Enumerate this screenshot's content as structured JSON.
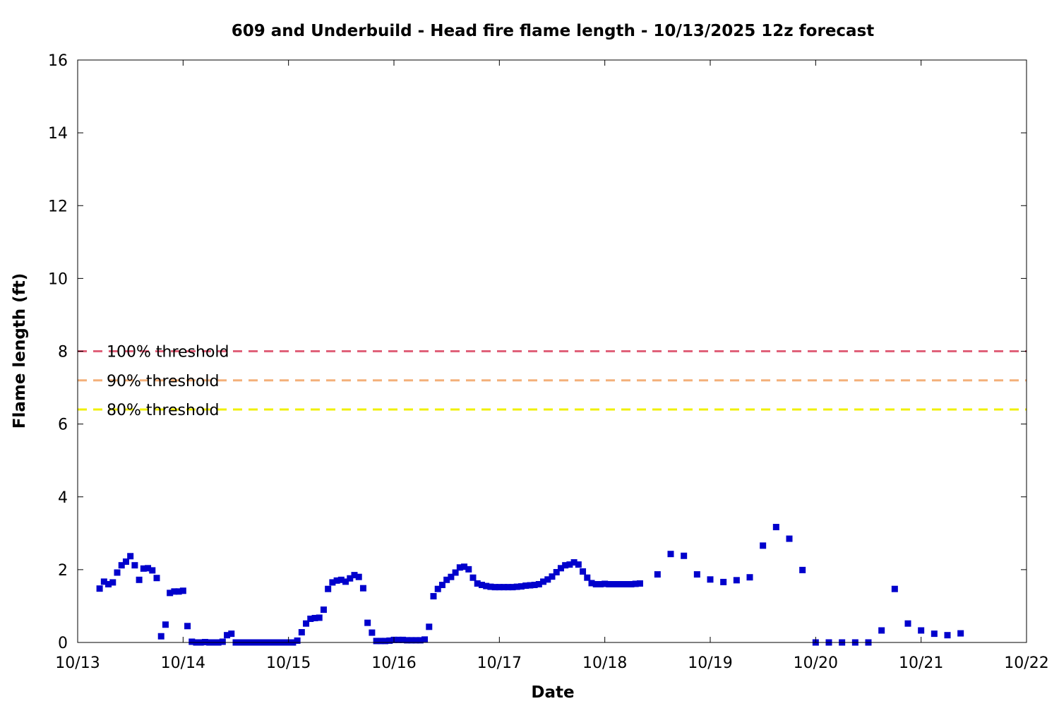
{
  "chart_data": {
    "type": "scatter",
    "title": "609 and Underbuild - Head fire flame length - 10/13/2025 12z forecast",
    "xlabel": "Date",
    "ylabel": "Flame length (ft)",
    "xlim": [
      "10/13 00:00",
      "10/22 00:00"
    ],
    "ylim": [
      0,
      16
    ],
    "x_ticks": [
      "10/13",
      "10/14",
      "10/15",
      "10/16",
      "10/17",
      "10/18",
      "10/19",
      "10/20",
      "10/21",
      "10/22"
    ],
    "y_ticks": [
      "0",
      "2",
      "4",
      "6",
      "8",
      "10",
      "12",
      "14",
      "16"
    ],
    "grid": false,
    "colors": {
      "points": "#0000cc",
      "threshold_100": "#e0627a",
      "threshold_90": "#f4b07a",
      "threshold_80": "#f0f000"
    },
    "thresholds": [
      {
        "label": "100% threshold",
        "value": 8.0
      },
      {
        "label": "90% threshold",
        "value": 7.2
      },
      {
        "label": "80% threshold",
        "value": 6.4
      }
    ],
    "series": [
      {
        "points": [
          [
            "10/13 05:00",
            1.48
          ],
          [
            "10/13 06:00",
            1.67
          ],
          [
            "10/13 07:00",
            1.6
          ],
          [
            "10/13 08:00",
            1.65
          ],
          [
            "10/13 09:00",
            1.92
          ],
          [
            "10/13 10:00",
            2.12
          ],
          [
            "10/13 11:00",
            2.22
          ],
          [
            "10/13 12:00",
            2.37
          ],
          [
            "10/13 13:00",
            2.12
          ],
          [
            "10/13 14:00",
            1.72
          ],
          [
            "10/13 15:00",
            2.03
          ],
          [
            "10/13 16:00",
            2.04
          ],
          [
            "10/13 17:00",
            1.98
          ],
          [
            "10/13 18:00",
            1.77
          ],
          [
            "10/13 19:00",
            0.17
          ],
          [
            "10/13 20:00",
            0.49
          ],
          [
            "10/13 21:00",
            1.36
          ],
          [
            "10/13 22:00",
            1.4
          ],
          [
            "10/13 23:00",
            1.4
          ],
          [
            "10/14 00:00",
            1.42
          ],
          [
            "10/14 01:00",
            0.45
          ],
          [
            "10/14 02:00",
            0.02
          ],
          [
            "10/14 03:00",
            0.0
          ],
          [
            "10/14 04:00",
            0.0
          ],
          [
            "10/14 05:00",
            0.01
          ],
          [
            "10/14 06:00",
            0.0
          ],
          [
            "10/14 07:00",
            0.0
          ],
          [
            "10/14 08:00",
            0.0
          ],
          [
            "10/14 09:00",
            0.02
          ],
          [
            "10/14 10:00",
            0.2
          ],
          [
            "10/14 11:00",
            0.24
          ],
          [
            "10/14 12:00",
            0.0
          ],
          [
            "10/14 13:00",
            0.0
          ],
          [
            "10/14 14:00",
            0.0
          ],
          [
            "10/14 15:00",
            0.0
          ],
          [
            "10/14 16:00",
            0.0
          ],
          [
            "10/14 17:00",
            0.0
          ],
          [
            "10/14 18:00",
            0.0
          ],
          [
            "10/14 19:00",
            0.0
          ],
          [
            "10/14 20:00",
            0.0
          ],
          [
            "10/14 21:00",
            0.0
          ],
          [
            "10/14 22:00",
            0.0
          ],
          [
            "10/14 23:00",
            0.0
          ],
          [
            "10/15 00:00",
            0.0
          ],
          [
            "10/15 01:00",
            0.0
          ],
          [
            "10/15 02:00",
            0.05
          ],
          [
            "10/15 03:00",
            0.28
          ],
          [
            "10/15 04:00",
            0.52
          ],
          [
            "10/15 05:00",
            0.65
          ],
          [
            "10/15 06:00",
            0.67
          ],
          [
            "10/15 07:00",
            0.68
          ],
          [
            "10/15 08:00",
            0.9
          ],
          [
            "10/15 09:00",
            1.47
          ],
          [
            "10/15 10:00",
            1.65
          ],
          [
            "10/15 11:00",
            1.7
          ],
          [
            "10/15 12:00",
            1.72
          ],
          [
            "10/15 13:00",
            1.67
          ],
          [
            "10/15 14:00",
            1.76
          ],
          [
            "10/15 15:00",
            1.85
          ],
          [
            "10/15 16:00",
            1.8
          ],
          [
            "10/15 17:00",
            1.49
          ],
          [
            "10/15 18:00",
            0.54
          ],
          [
            "10/15 19:00",
            0.27
          ],
          [
            "10/15 20:00",
            0.04
          ],
          [
            "10/15 21:00",
            0.04
          ],
          [
            "10/15 22:00",
            0.04
          ],
          [
            "10/15 23:00",
            0.05
          ],
          [
            "10/16 00:00",
            0.07
          ],
          [
            "10/16 01:00",
            0.07
          ],
          [
            "10/16 02:00",
            0.07
          ],
          [
            "10/16 03:00",
            0.06
          ],
          [
            "10/16 04:00",
            0.06
          ],
          [
            "10/16 05:00",
            0.06
          ],
          [
            "10/16 06:00",
            0.06
          ],
          [
            "10/16 07:00",
            0.08
          ],
          [
            "10/16 08:00",
            0.43
          ],
          [
            "10/16 09:00",
            1.27
          ],
          [
            "10/16 10:00",
            1.47
          ],
          [
            "10/16 11:00",
            1.58
          ],
          [
            "10/16 12:00",
            1.72
          ],
          [
            "10/16 13:00",
            1.8
          ],
          [
            "10/16 14:00",
            1.92
          ],
          [
            "10/16 15:00",
            2.06
          ],
          [
            "10/16 16:00",
            2.08
          ],
          [
            "10/16 17:00",
            2.01
          ],
          [
            "10/16 18:00",
            1.78
          ],
          [
            "10/16 19:00",
            1.62
          ],
          [
            "10/16 20:00",
            1.58
          ],
          [
            "10/16 21:00",
            1.55
          ],
          [
            "10/16 22:00",
            1.53
          ],
          [
            "10/16 23:00",
            1.52
          ],
          [
            "10/17 00:00",
            1.52
          ],
          [
            "10/17 01:00",
            1.52
          ],
          [
            "10/17 02:00",
            1.52
          ],
          [
            "10/17 03:00",
            1.52
          ],
          [
            "10/17 04:00",
            1.53
          ],
          [
            "10/17 05:00",
            1.54
          ],
          [
            "10/17 06:00",
            1.56
          ],
          [
            "10/17 07:00",
            1.57
          ],
          [
            "10/17 08:00",
            1.58
          ],
          [
            "10/17 09:00",
            1.6
          ],
          [
            "10/17 10:00",
            1.67
          ],
          [
            "10/17 11:00",
            1.73
          ],
          [
            "10/17 12:00",
            1.81
          ],
          [
            "10/17 13:00",
            1.93
          ],
          [
            "10/17 14:00",
            2.04
          ],
          [
            "10/17 15:00",
            2.12
          ],
          [
            "10/17 16:00",
            2.14
          ],
          [
            "10/17 17:00",
            2.2
          ],
          [
            "10/17 18:00",
            2.14
          ],
          [
            "10/17 19:00",
            1.95
          ],
          [
            "10/17 20:00",
            1.78
          ],
          [
            "10/17 21:00",
            1.63
          ],
          [
            "10/17 22:00",
            1.6
          ],
          [
            "10/17 23:00",
            1.6
          ],
          [
            "10/18 00:00",
            1.61
          ],
          [
            "10/18 01:00",
            1.6
          ],
          [
            "10/18 02:00",
            1.6
          ],
          [
            "10/18 03:00",
            1.6
          ],
          [
            "10/18 04:00",
            1.6
          ],
          [
            "10/18 05:00",
            1.6
          ],
          [
            "10/18 06:00",
            1.6
          ],
          [
            "10/18 07:00",
            1.61
          ],
          [
            "10/18 08:00",
            1.62
          ],
          [
            "10/18 12:00",
            1.87
          ],
          [
            "10/18 15:00",
            2.43
          ],
          [
            "10/18 18:00",
            2.38
          ],
          [
            "10/18 21:00",
            1.87
          ],
          [
            "10/19 00:00",
            1.73
          ],
          [
            "10/19 03:00",
            1.66
          ],
          [
            "10/19 06:00",
            1.71
          ],
          [
            "10/19 09:00",
            1.79
          ],
          [
            "10/19 12:00",
            2.66
          ],
          [
            "10/19 15:00",
            3.17
          ],
          [
            "10/19 18:00",
            2.85
          ],
          [
            "10/19 21:00",
            1.99
          ],
          [
            "10/20 00:00",
            0.0
          ],
          [
            "10/20 03:00",
            0.0
          ],
          [
            "10/20 06:00",
            0.0
          ],
          [
            "10/20 09:00",
            0.0
          ],
          [
            "10/20 12:00",
            0.0
          ],
          [
            "10/20 15:00",
            0.33
          ],
          [
            "10/20 18:00",
            1.47
          ],
          [
            "10/20 21:00",
            0.52
          ],
          [
            "10/21 00:00",
            0.33
          ],
          [
            "10/21 03:00",
            0.24
          ],
          [
            "10/21 06:00",
            0.2
          ],
          [
            "10/21 09:00",
            0.25
          ]
        ]
      }
    ]
  }
}
